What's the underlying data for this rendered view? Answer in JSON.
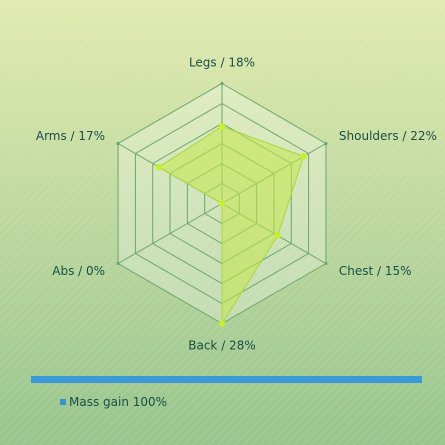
{
  "chart_data": {
    "type": "radar",
    "title": "",
    "axes": [
      "Legs",
      "Shoulders",
      "Chest",
      "Back",
      "Abs",
      "Arms"
    ],
    "axis_labels": [
      "Legs / 18%",
      "Shoulders / 22%",
      "Chest / 15%",
      "Back / 28%",
      "Abs / 0%",
      "Arms / 17%"
    ],
    "series": [
      {
        "name": "Mass gain",
        "values": [
          18,
          22,
          15,
          28,
          0,
          17
        ],
        "fill_color": "#c5e84a",
        "stroke_color": "#a9d63a",
        "point_color": "#c8ee2e"
      }
    ],
    "rlim": [
      0,
      28
    ],
    "grid_levels": 6,
    "legend": {
      "position": "bottom-left",
      "label": "Mass gain 100%",
      "marker_color": "#3a8fd6"
    },
    "legend_bar_color": "#3a9ad9",
    "background_colors": [
      "#e2ebb0",
      "#98c58e"
    ],
    "grid_color": "#6aa86a"
  }
}
